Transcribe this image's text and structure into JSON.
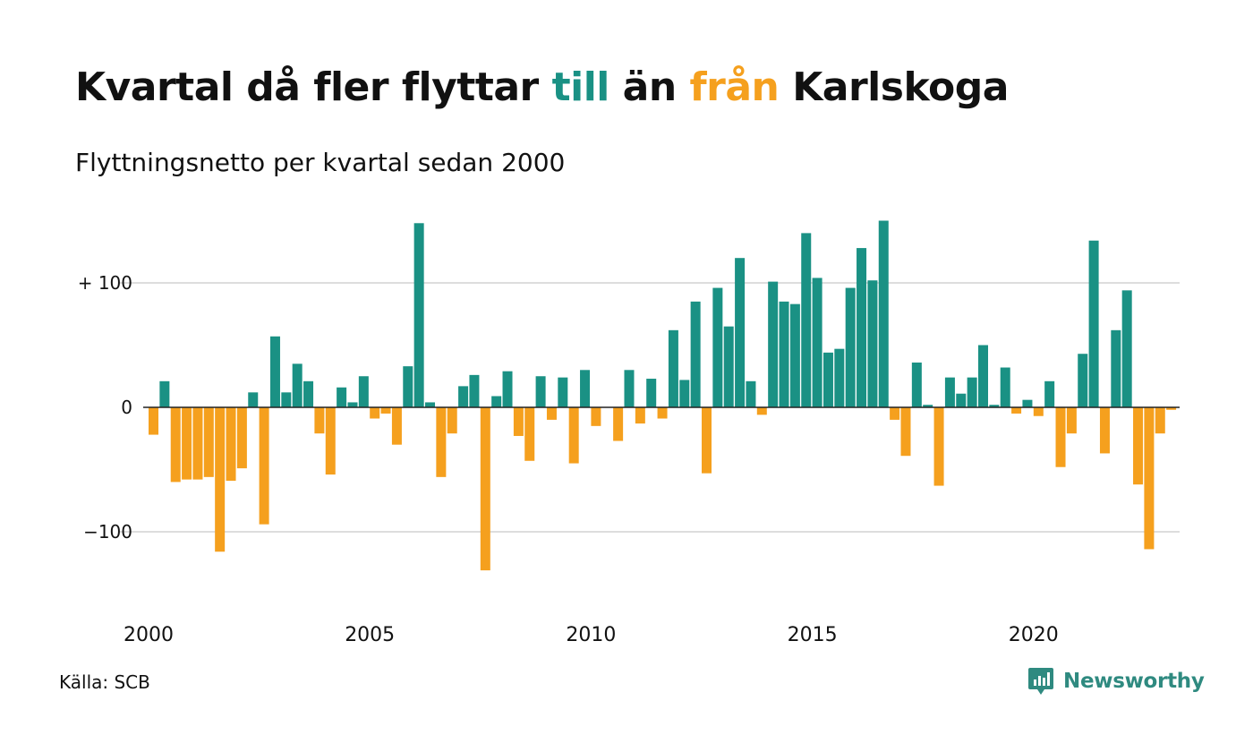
{
  "title": {
    "part1": "Kvartal då fler flyttar ",
    "till": "till",
    "part2": " än ",
    "fran": "från",
    "part3": " Karlskoga"
  },
  "subtitle": "Flyttningsnetto per kvartal sedan 2000",
  "source": "Källa: SCB",
  "brand": "Newsworthy",
  "colors": {
    "positive": "#1a9184",
    "negative": "#f5a01e",
    "grid": "#dddddd",
    "text": "#111111"
  },
  "icons": [
    "newsworthy-logo-icon"
  ],
  "chart_data": {
    "type": "bar",
    "x_start_year": 2000,
    "x_start_quarter": 1,
    "x_ticks": [
      "2000",
      "2005",
      "2010",
      "2015",
      "2020"
    ],
    "y_tick_values": [
      100,
      0,
      -100
    ],
    "y_tick_labels": [
      "+ 100",
      "0",
      "−100"
    ],
    "ylim": [
      -145,
      150
    ],
    "grid": true,
    "values": [
      -22,
      21,
      -60,
      -58,
      -58,
      -56,
      -116,
      -59,
      -49,
      12,
      -94,
      57,
      12,
      35,
      21,
      -21,
      -54,
      16,
      4,
      25,
      -9,
      -5,
      -30,
      33,
      148,
      4,
      -56,
      -21,
      17,
      26,
      -131,
      9,
      29,
      -23,
      -43,
      25,
      -10,
      24,
      -45,
      30,
      -15,
      0,
      -27,
      30,
      -13,
      23,
      -9,
      62,
      22,
      85,
      -53,
      96,
      65,
      120,
      21,
      -6,
      101,
      85,
      83,
      140,
      104,
      44,
      47,
      96,
      128,
      102,
      150,
      -10,
      -39,
      36,
      2,
      -63,
      24,
      11,
      24,
      50,
      2,
      32,
      -5,
      6,
      -7,
      21,
      -48,
      -21,
      43,
      134,
      -37,
      62,
      94,
      -62,
      -114,
      -21,
      -2
    ]
  }
}
